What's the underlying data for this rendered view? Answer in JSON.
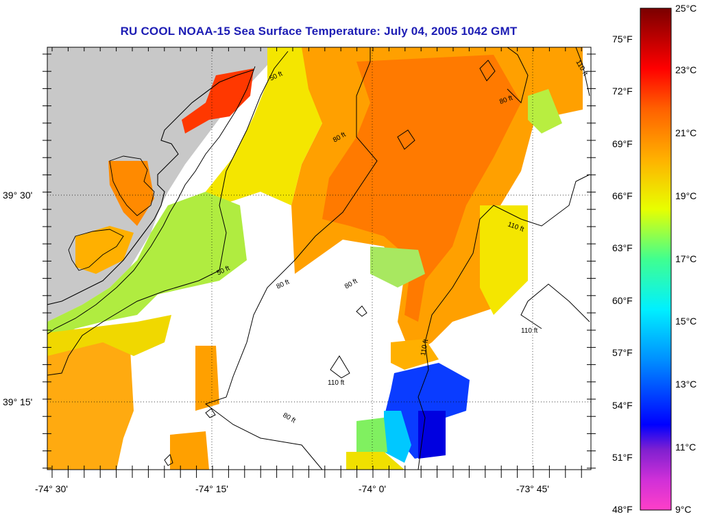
{
  "title": "RU COOL  NOAA-15  Sea Surface Temperature:  July 04, 2005 1042 GMT",
  "latitude_labels": [
    "39° 30'",
    "39° 15'"
  ],
  "longitude_labels": [
    "-74° 30'",
    "-74° 15'",
    "-74° 0'",
    "-73° 45'"
  ],
  "depth_contour_labels": [
    "50 ft",
    "80 ft",
    "110 ft"
  ],
  "colorbar": {
    "fahrenheit_labels": [
      "75°F",
      "72°F",
      "69°F",
      "66°F",
      "63°F",
      "60°F",
      "57°F",
      "54°F",
      "51°F",
      "48°F"
    ],
    "celsius_labels": [
      "25°C",
      "23°C",
      "21°C",
      "19°C",
      "17°C",
      "15°C",
      "13°C",
      "11°C",
      "9°C"
    ],
    "range_celsius": [
      9,
      25
    ],
    "colors": [
      "#ff3fc8",
      "#9020d0",
      "#0000ff",
      "#00c8ff",
      "#40ff90",
      "#e8ff00",
      "#ffb000",
      "#ff6000",
      "#ff0000",
      "#7a0000"
    ]
  },
  "colors": {
    "land": "#c8c8c8",
    "title": "#1c1cb4",
    "no_data": "#ffffff"
  }
}
